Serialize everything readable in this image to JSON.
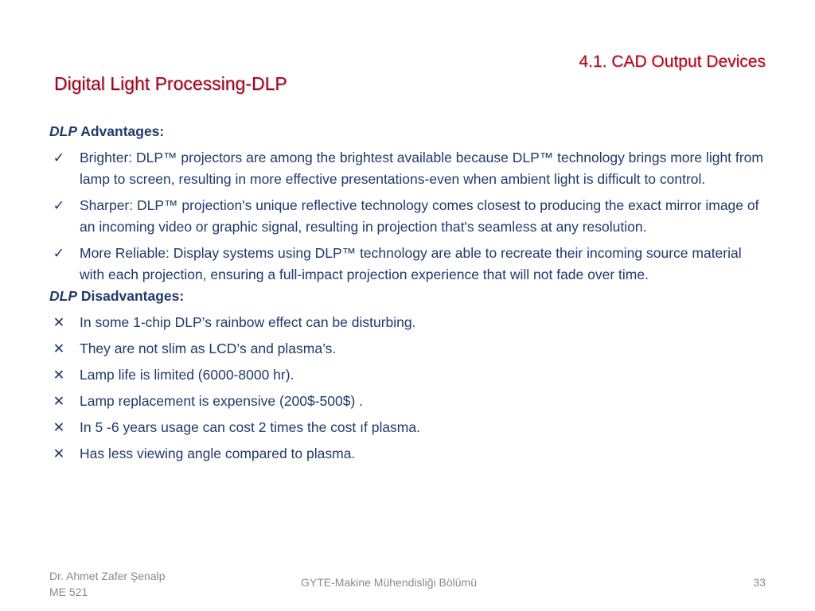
{
  "header": {
    "section_title": "4.1. CAD Output Devices",
    "title": "Digital Light Processing-DLP"
  },
  "advantages": {
    "prefix": "DLP",
    "label": "Advantages:",
    "mark": "✓",
    "items": [
      "Brighter: DLP™ projectors are among the brightest available because DLP™ technology brings more light from lamp to screen, resulting in more effective presentations-even when ambient light is difficult to control.",
      "Sharper: DLP™ projection's unique reflective technology comes closest to producing the exact mirror image of an incoming video or graphic signal, resulting in projection that's seamless at any resolution.",
      "More Reliable: Display systems using DLP™ technology are able to recreate their incoming source material with each projection, ensuring a full-impact projection experience that will not fade over time."
    ]
  },
  "disadvantages": {
    "prefix": "DLP",
    "label": "Disadvantages:",
    "mark": "✕",
    "items": [
      "In some 1-chip DLP’s rainbow effect can be disturbing.",
      "They are not slim as LCD’s and plasma’s.",
      "Lamp life is limited (6000-8000 hr).",
      "Lamp replacement is expensive (200$-500$) .",
      "In 5 -6 years usage can cost 2 times the cost ıf plasma.",
      "Has less viewing angle compared to plasma."
    ]
  },
  "footer": {
    "author": "Dr. Ahmet Zafer Şenalp",
    "course": "ME 521",
    "department": "GYTE-Makine Mühendisliği Bölümü",
    "page_number": "33"
  },
  "colors": {
    "title": "#a8001e",
    "section_title": "#c0001b",
    "body_text": "#1f3a6b",
    "footer_text": "#8a8a8a"
  }
}
